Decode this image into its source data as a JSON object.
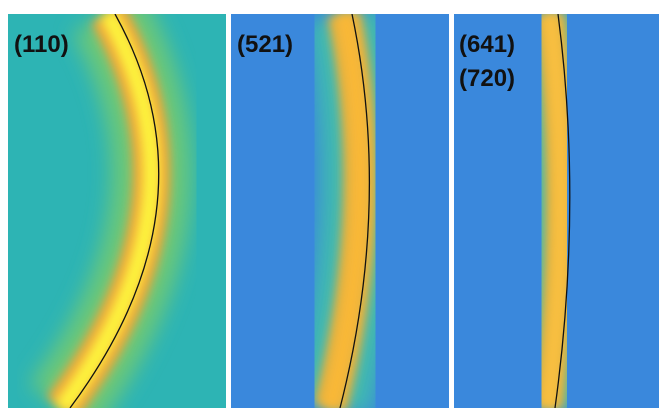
{
  "panels": [
    {
      "labels": [
        "(110)"
      ]
    },
    {
      "labels": [
        "(521)"
      ]
    },
    {
      "labels": [
        "(641)",
        "(720)"
      ]
    }
  ]
}
